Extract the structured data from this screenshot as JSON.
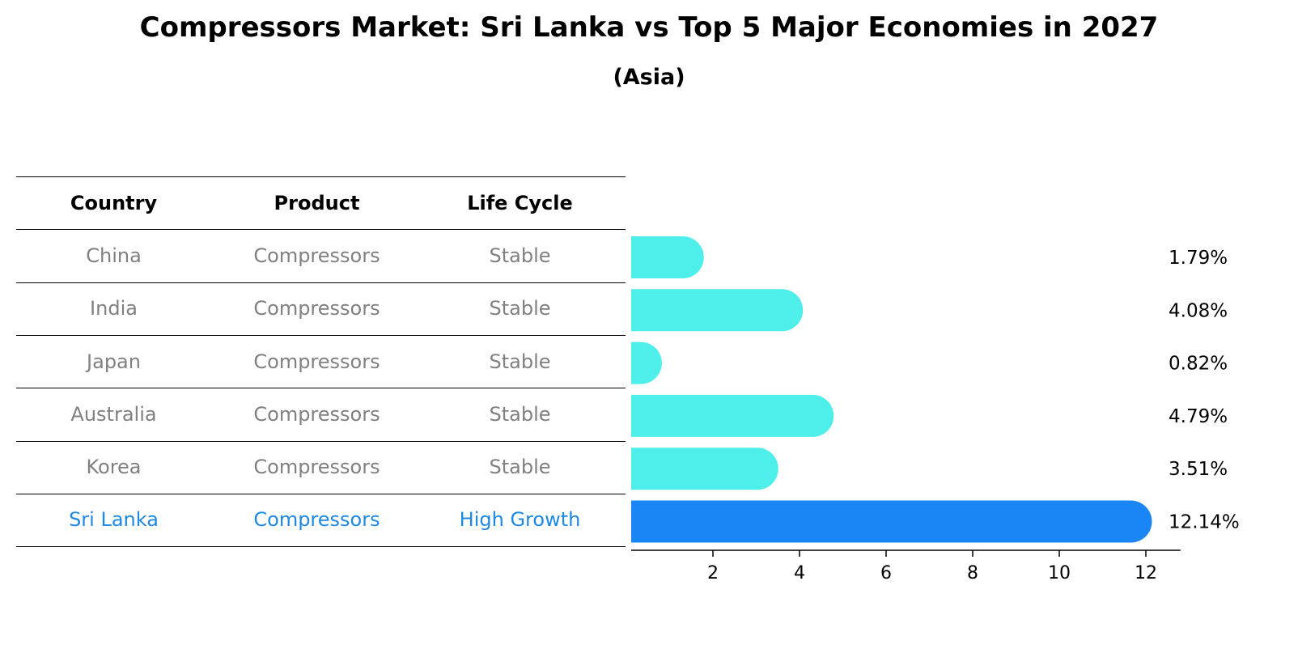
{
  "header": {
    "title": "Compressors Market: Sri Lanka vs Top 5 Major Economies in 2027",
    "subtitle": "(Asia)"
  },
  "table": {
    "columns": [
      "Country",
      "Product",
      "Life Cycle"
    ],
    "rows": [
      [
        "China",
        "Compressors",
        "Stable"
      ],
      [
        "India",
        "Compressors",
        "Stable"
      ],
      [
        "Japan",
        "Compressors",
        "Stable"
      ],
      [
        "Australia",
        "Compressors",
        "Stable"
      ],
      [
        "Korea",
        "Compressors",
        "Stable"
      ],
      [
        "Sri Lanka",
        "Compressors",
        "High Growth"
      ]
    ],
    "highlight_row": 5,
    "colors": {
      "muted": "#808080",
      "highlight": "#1e88e5"
    }
  },
  "chart_data": {
    "type": "bar",
    "orientation": "horizontal",
    "categories": [
      "China",
      "India",
      "Japan",
      "Australia",
      "Korea",
      "Sri Lanka"
    ],
    "values": [
      1.79,
      4.08,
      0.82,
      4.79,
      3.51,
      12.14
    ],
    "value_labels": [
      "1.79%",
      "4.08%",
      "0.82%",
      "4.79%",
      "3.51%",
      "12.14%"
    ],
    "xlim": [
      0,
      12.8
    ],
    "xticks": [
      0,
      2,
      4,
      6,
      8,
      10,
      12
    ],
    "colors": {
      "default": "#4eeeea",
      "highlight": "#1a86f5"
    },
    "highlight_index": 5,
    "grid": false
  }
}
